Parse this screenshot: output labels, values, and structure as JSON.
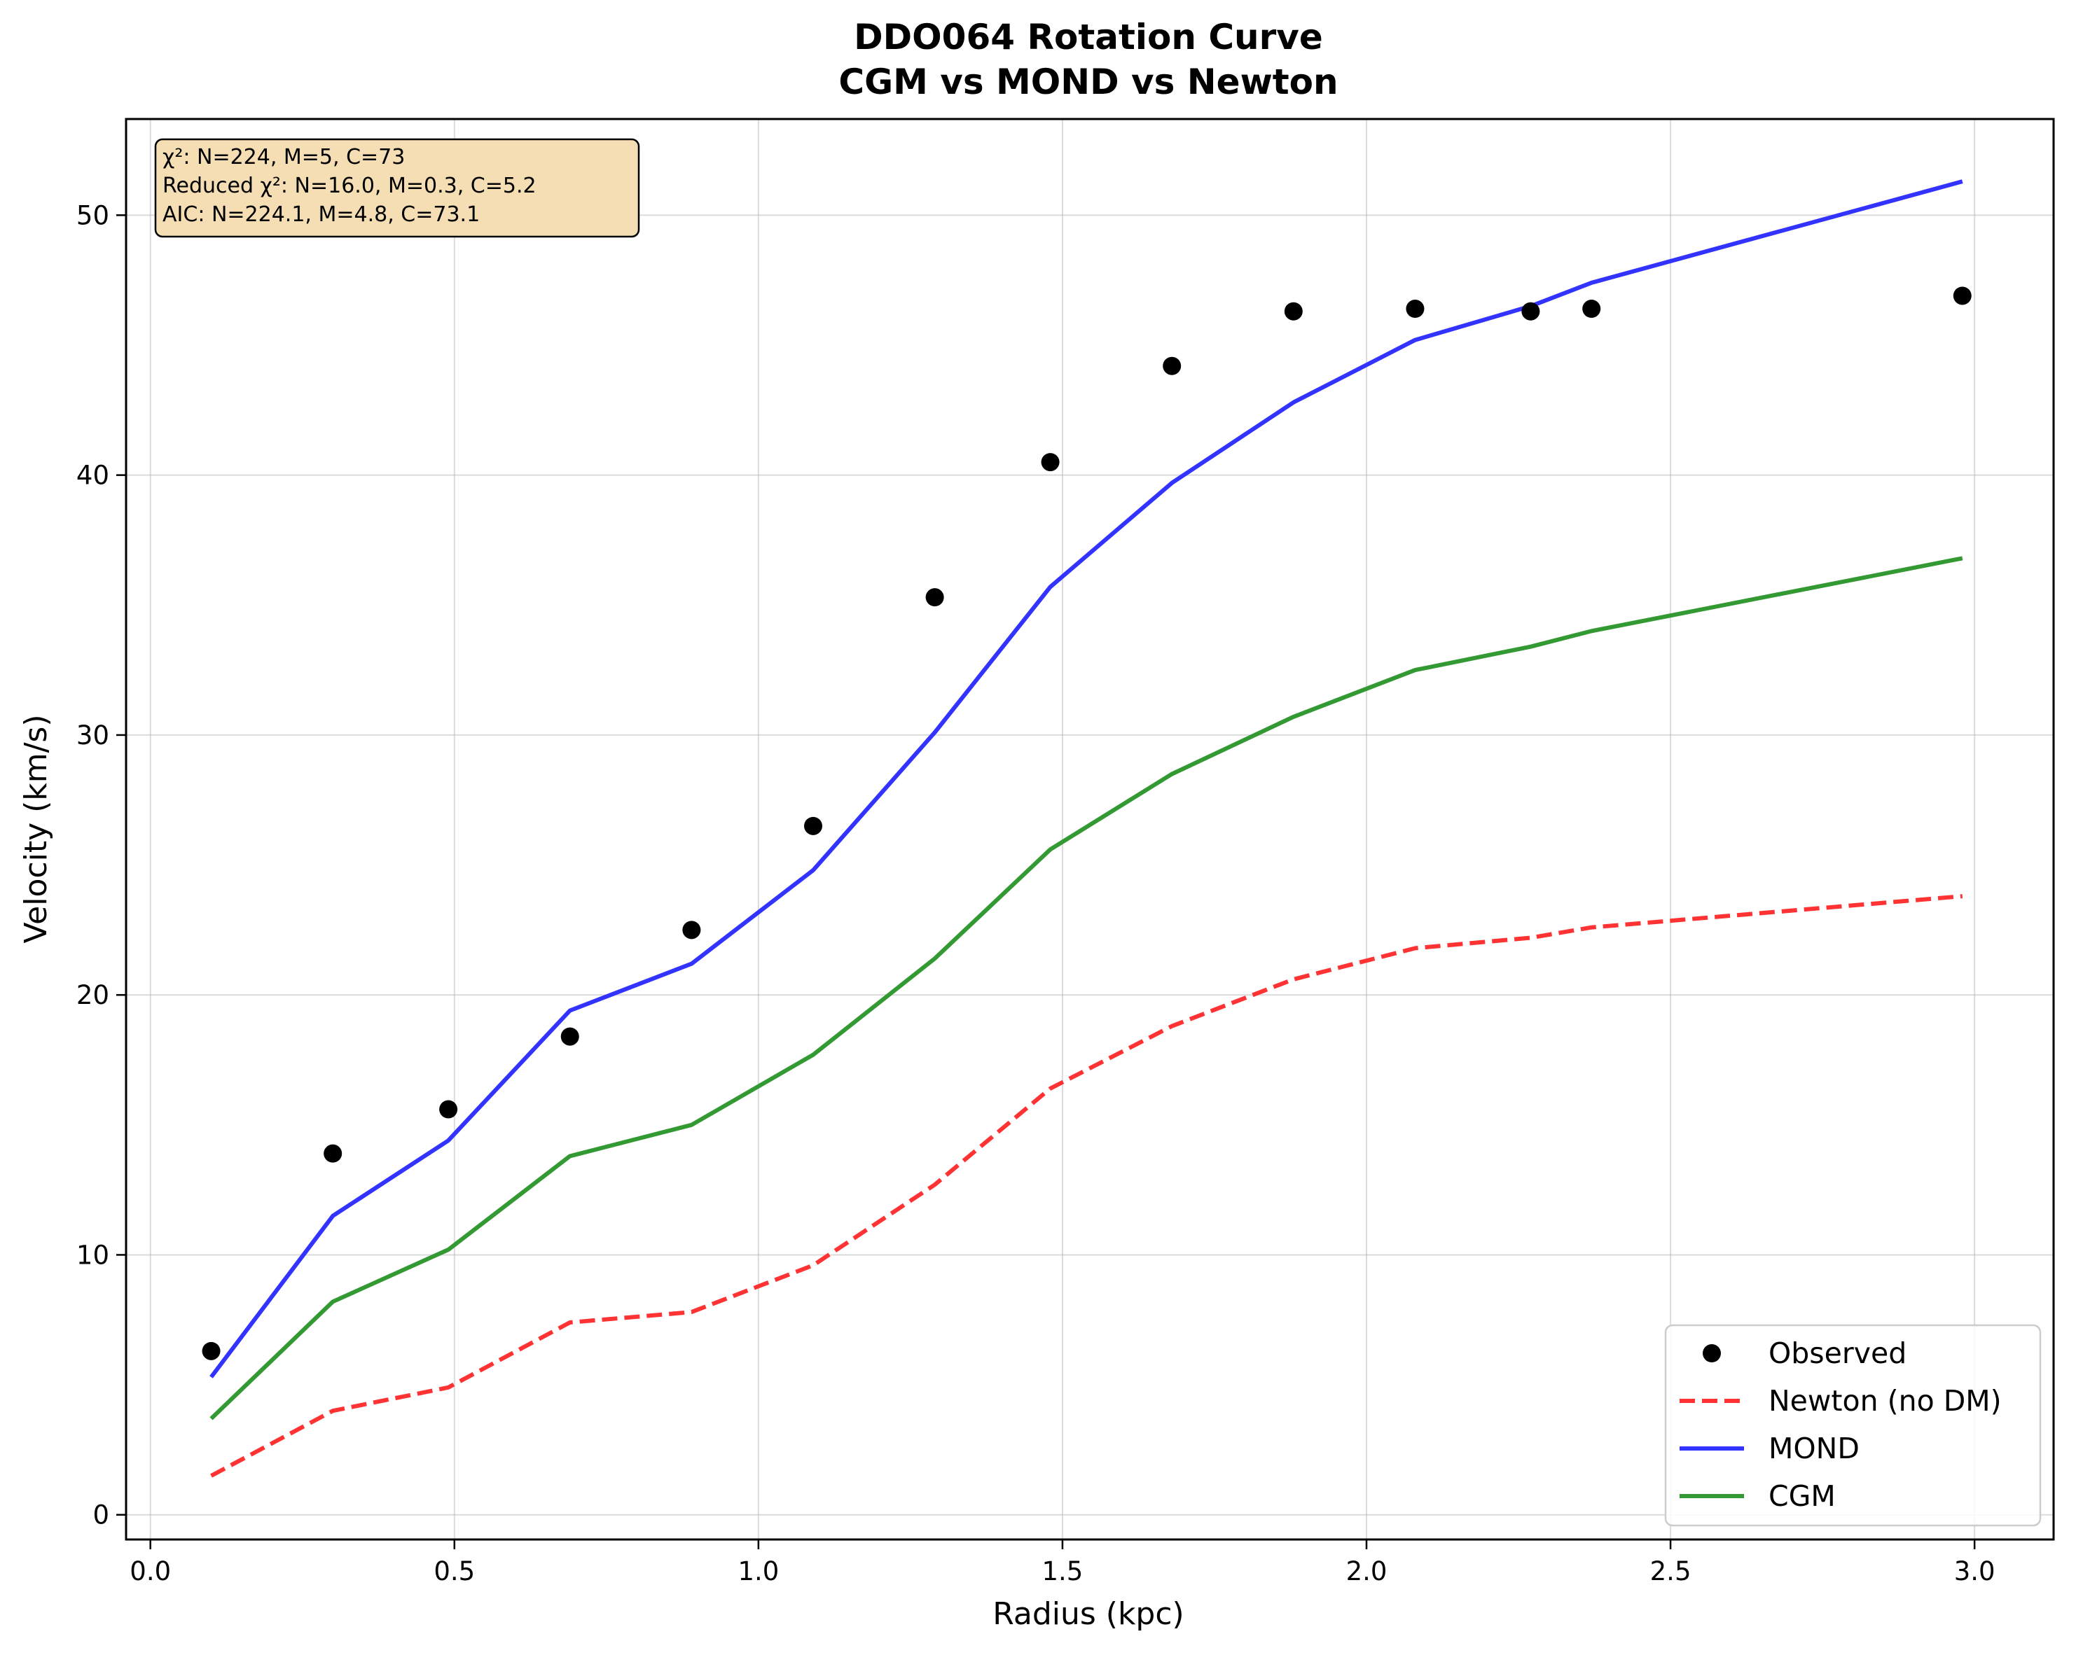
{
  "chart_data": {
    "type": "line",
    "title": "DDO064 Rotation Curve",
    "subtitle": "CGM vs MOND vs Newton",
    "xlabel": "Radius (kpc)",
    "ylabel": "Velocity (km/s)",
    "xlim": [
      -0.04,
      3.13
    ],
    "ylim": [
      -0.95,
      53.7
    ],
    "xticks": [
      "0.0",
      "0.5",
      "1.0",
      "1.5",
      "2.0",
      "2.5",
      "3.0"
    ],
    "xtick_values": [
      0,
      0.5,
      1.0,
      1.5,
      2.0,
      2.5,
      3.0
    ],
    "yticks": [
      "0",
      "10",
      "20",
      "30",
      "40",
      "50"
    ],
    "ytick_values": [
      0,
      10,
      20,
      30,
      40,
      50
    ],
    "grid": true,
    "legend_position": "lower-right",
    "x": [
      0.1,
      0.3,
      0.49,
      0.69,
      0.89,
      1.09,
      1.29,
      1.48,
      1.68,
      1.88,
      2.08,
      2.27,
      2.37,
      2.98
    ],
    "observed": {
      "name": "Observed",
      "color": "#000000",
      "values": [
        6.3,
        13.9,
        15.6,
        18.4,
        22.5,
        26.5,
        35.3,
        40.5,
        44.2,
        46.3,
        46.4,
        46.3,
        46.4,
        46.9
      ]
    },
    "series": [
      {
        "name": "Newton (no DM)",
        "color": "#ff3333",
        "style": "dashed",
        "values": [
          1.5,
          4.0,
          4.9,
          7.4,
          7.8,
          9.6,
          12.7,
          16.4,
          18.8,
          20.6,
          21.8,
          22.2,
          22.6,
          23.8
        ]
      },
      {
        "name": "MOND",
        "color": "#3333ff",
        "style": "solid",
        "values": [
          5.3,
          11.5,
          14.4,
          19.4,
          21.2,
          24.8,
          30.1,
          35.7,
          39.7,
          42.8,
          45.2,
          46.5,
          47.4,
          51.3
        ]
      },
      {
        "name": "CGM",
        "color": "#339933",
        "style": "solid",
        "values": [
          3.7,
          8.2,
          10.2,
          13.8,
          15.0,
          17.7,
          21.4,
          25.6,
          28.5,
          30.7,
          32.5,
          33.4,
          34.0,
          36.8
        ]
      }
    ],
    "stats_box": {
      "line1": "χ²: N=224, M=5, C=73",
      "line2": "Reduced χ²: N=16.0, M=0.3, C=5.2",
      "line3": "AIC: N=224.1, M=4.8, C=73.1",
      "background": "#f5deb3"
    }
  }
}
